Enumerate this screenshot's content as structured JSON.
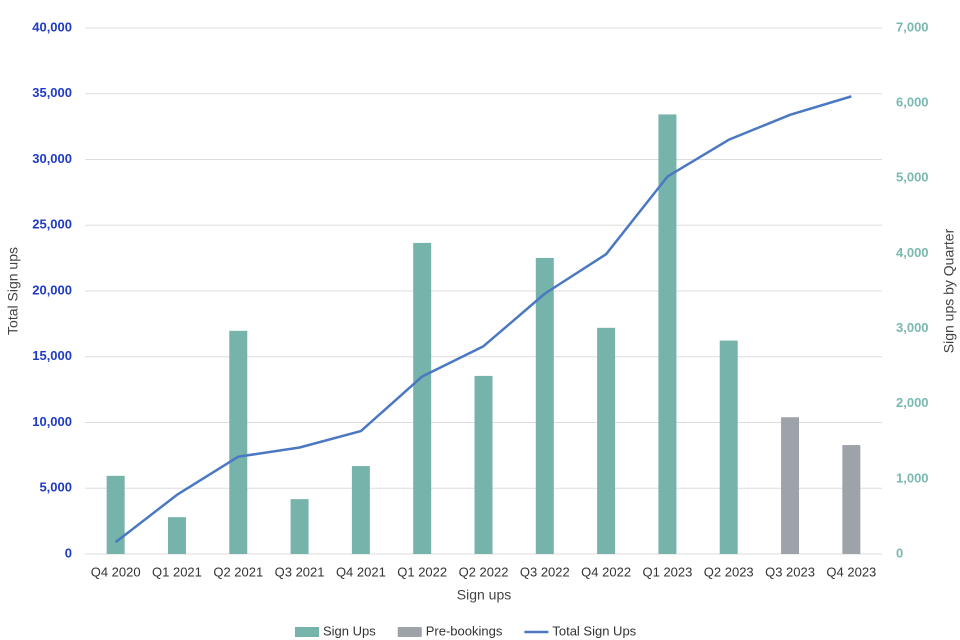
{
  "chart_data": {
    "type": "bar-line",
    "x_label": "Sign ups",
    "y_label": "Total Sign ups",
    "y2_label": "Sign ups by Quarter",
    "categories": [
      "Q4 2020",
      "Q1 2021",
      "Q2 2021",
      "Q3 2021",
      "Q4 2021",
      "Q1 2022",
      "Q2 2022",
      "Q3 2022",
      "Q4 2022",
      "Q1 2023",
      "Q2 2023",
      "Q3 2023",
      "Q4 2023"
    ],
    "series": [
      {
        "name": "Sign Ups",
        "type": "bar",
        "axis": "y2",
        "color": "#76b3ab",
        "values": [
          1040,
          490,
          2970,
          730,
          1170,
          4140,
          2370,
          3940,
          3010,
          5850,
          2840,
          null,
          null
        ]
      },
      {
        "name": "Pre-bookings",
        "type": "bar",
        "axis": "y2",
        "color": "#9ea3aa",
        "values": [
          null,
          null,
          null,
          null,
          null,
          null,
          null,
          null,
          null,
          null,
          null,
          1820,
          1450
        ]
      },
      {
        "name": "Total Sign Ups",
        "type": "line",
        "axis": "y",
        "color": "#4a78c2",
        "values": [
          900,
          4500,
          7400,
          8100,
          9350,
          13500,
          15800,
          19800,
          22800,
          28700,
          31500,
          33400,
          34800
        ]
      }
    ],
    "ylim": [
      0,
      40000
    ],
    "yticks": [
      0,
      {
        "value": 5000,
        "label": "5,000"
      },
      {
        "value": 10000,
        "label": "10,000"
      },
      {
        "value": 15000,
        "label": "15,000"
      },
      {
        "value": 20000,
        "label": "20,000"
      },
      {
        "value": 25000,
        "label": "25,000"
      },
      {
        "value": 30000,
        "label": "30,000"
      },
      {
        "value": 35000,
        "label": "35,000"
      },
      {
        "value": 40000,
        "label": "40,000"
      }
    ],
    "y2lim": [
      0,
      7000
    ],
    "y2ticks": [
      0,
      {
        "value": 1000,
        "label": "1,000"
      },
      {
        "value": 2000,
        "label": "2,000"
      },
      {
        "value": 3000,
        "label": "3,000"
      },
      {
        "value": 4000,
        "label": "4,000"
      },
      {
        "value": 5000,
        "label": "5,000"
      },
      {
        "value": 6000,
        "label": "6,000"
      },
      {
        "value": 7000,
        "label": "7,000"
      }
    ],
    "grid": true,
    "legend": "bottom"
  }
}
